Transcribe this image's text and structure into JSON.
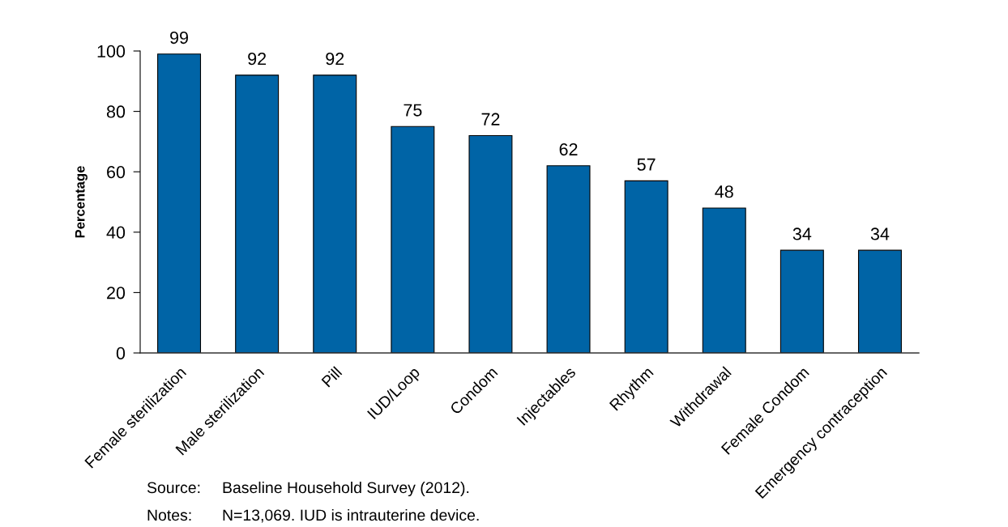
{
  "chart_data": {
    "type": "bar",
    "ylabel": "Percentage",
    "categories": [
      "Female sterilization",
      "Male sterilization",
      "Pill",
      "IUD/Loop",
      "Condom",
      "Injectables",
      "Rhythm",
      "Withdrawal",
      "Female Condom",
      "Emergency contraception"
    ],
    "values": [
      99,
      92,
      92,
      75,
      72,
      62,
      57,
      48,
      34,
      34
    ],
    "color": "#0064a6",
    "ylim": [
      0,
      100
    ],
    "yticks": [
      0,
      20,
      40,
      60,
      80,
      100
    ],
    "data_labels": true,
    "grid": false,
    "legend": false,
    "annotations": [
      "Source: Baseline Household Survey (2012).",
      "Notes: N=13,069. IUD is intrauterine device."
    ]
  }
}
